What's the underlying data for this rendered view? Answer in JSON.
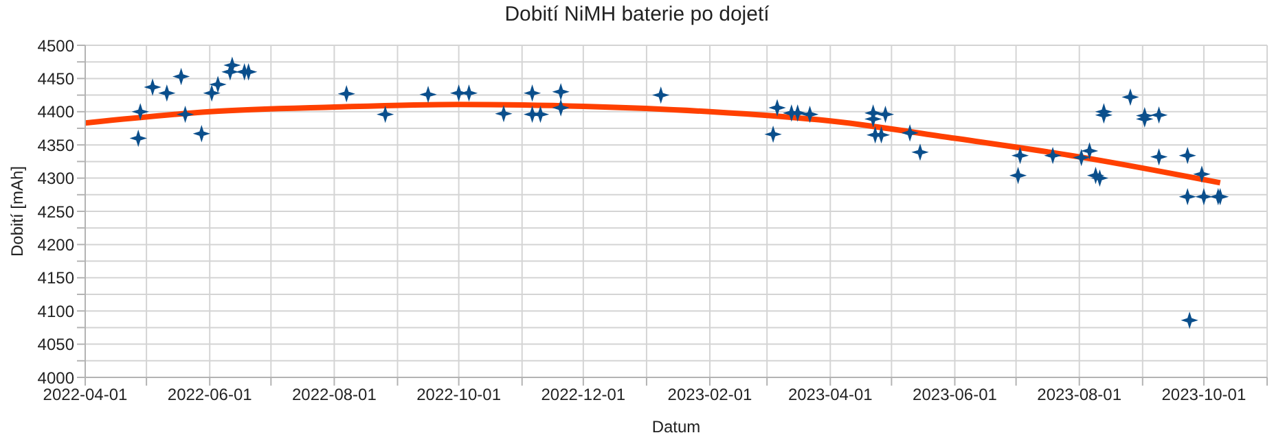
{
  "chart_data": {
    "type": "scatter",
    "title": "Dobití NiMH baterie po dojetí",
    "xlabel": "Datum",
    "ylabel": "Dobití [mAh]",
    "xlim": [
      "2022-04-01",
      "2023-11-01"
    ],
    "xticks": [
      {
        "value": "2022-04-01",
        "label": "2022-04-01"
      },
      {
        "value": "2022-05-01",
        "label": null
      },
      {
        "value": "2022-06-01",
        "label": "2022-06-01"
      },
      {
        "value": "2022-07-01",
        "label": null
      },
      {
        "value": "2022-08-01",
        "label": "2022-08-01"
      },
      {
        "value": "2022-09-01",
        "label": null
      },
      {
        "value": "2022-10-01",
        "label": "2022-10-01"
      },
      {
        "value": "2022-11-01",
        "label": null
      },
      {
        "value": "2022-12-01",
        "label": "2022-12-01"
      },
      {
        "value": "2023-01-01",
        "label": null
      },
      {
        "value": "2023-02-01",
        "label": "2023-02-01"
      },
      {
        "value": "2023-03-01",
        "label": null
      },
      {
        "value": "2023-04-01",
        "label": "2023-04-01"
      },
      {
        "value": "2023-05-01",
        "label": null
      },
      {
        "value": "2023-06-01",
        "label": "2023-06-01"
      },
      {
        "value": "2023-07-01",
        "label": null
      },
      {
        "value": "2023-08-01",
        "label": "2023-08-01"
      },
      {
        "value": "2023-09-01",
        "label": null
      },
      {
        "value": "2023-10-01",
        "label": "2023-10-01"
      },
      {
        "value": "2023-11-01",
        "label": null
      }
    ],
    "ylim": [
      4000,
      4500
    ],
    "yticks": [
      4000,
      {
        "value": 4025,
        "label": null
      },
      4050,
      {
        "value": 4075,
        "label": null
      },
      4100,
      {
        "value": 4125,
        "label": null
      },
      4150,
      {
        "value": 4175,
        "label": null
      },
      4200,
      {
        "value": 4225,
        "label": null
      },
      4250,
      {
        "value": 4275,
        "label": null
      },
      4300,
      {
        "value": 4325,
        "label": null
      },
      4350,
      {
        "value": 4375,
        "label": null
      },
      4400,
      {
        "value": 4425,
        "label": null
      },
      4450,
      {
        "value": 4475,
        "label": null
      },
      4500
    ],
    "grid": true,
    "marker": "star",
    "series": [
      {
        "type": "scatter",
        "color": "#0b4f8c",
        "x": [
          "2022-04-27",
          "2022-04-28",
          "2022-05-04",
          "2022-05-11",
          "2022-05-18",
          "2022-05-20",
          "2022-05-28",
          "2022-06-02",
          "2022-06-05",
          "2022-06-11",
          "2022-06-12",
          "2022-06-18",
          "2022-06-20",
          "2022-08-07",
          "2022-08-26",
          "2022-09-16",
          "2022-10-01",
          "2022-10-06",
          "2022-10-23",
          "2022-11-06",
          "2022-11-06",
          "2022-11-10",
          "2022-11-20",
          "2022-11-20",
          "2023-01-08",
          "2023-03-04",
          "2023-03-06",
          "2023-03-13",
          "2023-03-16",
          "2023-03-22",
          "2023-04-22",
          "2023-04-22",
          "2023-04-23",
          "2023-04-26",
          "2023-04-28",
          "2023-05-10",
          "2023-05-15",
          "2023-07-02",
          "2023-07-03",
          "2023-07-19",
          "2023-08-02",
          "2023-08-06",
          "2023-08-09",
          "2023-08-11",
          "2023-08-13",
          "2023-08-13",
          "2023-08-26",
          "2023-09-02",
          "2023-09-02",
          "2023-09-09",
          "2023-09-09",
          "2023-09-23",
          "2023-09-23",
          "2023-09-24",
          "2023-09-30",
          "2023-10-01",
          "2023-10-08",
          "2023-10-09"
        ],
        "values": [
          4360,
          4400,
          4437,
          4428,
          4453,
          4396,
          4367,
          4428,
          4441,
          4460,
          4470,
          4460,
          4460,
          4427,
          4396,
          4426,
          4428,
          4428,
          4397,
          4428,
          4396,
          4396,
          4430,
          4406,
          4425,
          4366,
          4406,
          4398,
          4398,
          4396,
          4398,
          4389,
          4365,
          4365,
          4396,
          4368,
          4339,
          4304,
          4334,
          4334,
          4331,
          4341,
          4304,
          4300,
          4400,
          4395,
          4422,
          4394,
          4389,
          4395,
          4332,
          4334,
          4272,
          4086,
          4306,
          4272,
          4272,
          4272
        ]
      },
      {
        "type": "line",
        "color": "#ff4000",
        "marker": "none",
        "x": [
          "2022-04-01",
          "2022-06-01",
          "2022-08-01",
          "2022-10-01",
          "2022-12-01",
          "2023-02-01",
          "2023-04-01",
          "2023-06-01",
          "2023-08-01",
          "2023-10-09"
        ],
        "values": [
          4383,
          4400,
          4407,
          4411,
          4408,
          4400,
          4386,
          4360,
          4332,
          4293
        ]
      }
    ]
  }
}
